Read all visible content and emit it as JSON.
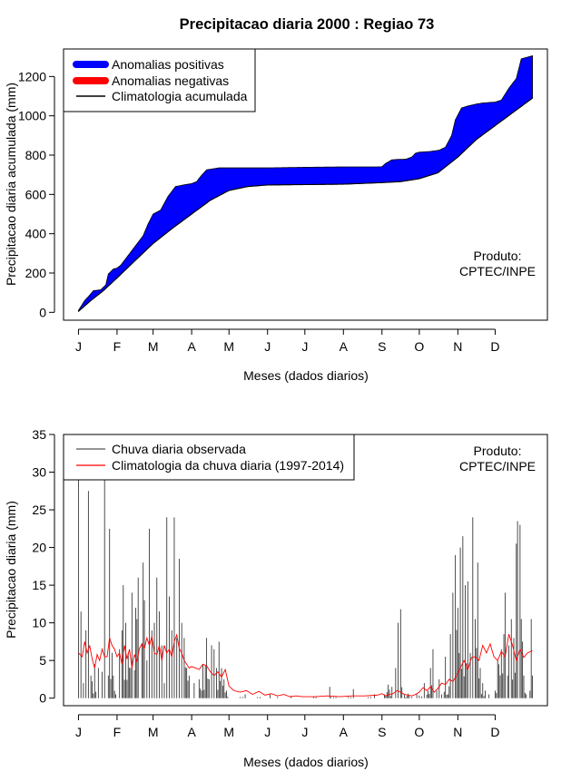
{
  "title": "Precipitacao diaria 2000 : Regiao 73",
  "chart_data": [
    {
      "type": "area",
      "ylabel": "Precipitacao diaria acumulada (mm)",
      "xlabel": "Meses (dados diarios)",
      "ylim": [
        -40,
        1340
      ],
      "xlim": [
        -12,
        377
      ],
      "y_ticks": [
        0,
        200,
        400,
        600,
        800,
        1000,
        1200
      ],
      "month_labels": [
        "J",
        "F",
        "M",
        "A",
        "M",
        "J",
        "J",
        "A",
        "S",
        "O",
        "N",
        "D"
      ],
      "month_days": [
        0,
        31,
        60,
        91,
        121,
        152,
        182,
        213,
        244,
        274,
        305,
        335
      ],
      "legend": {
        "position": "top-left",
        "entries": [
          "Anomalias positivas",
          "Anomalias negativas",
          "Climatologia acumulada"
        ],
        "colors": [
          "#0000ff",
          "#ff0000",
          "#000000"
        ]
      },
      "annotation": [
        "Produto:",
        "CPTEC/INPE"
      ],
      "colors": {
        "positive": "#0000ff",
        "negative": "#ff0000",
        "climatology": "#000000"
      },
      "climatology": {
        "x": [
          0,
          10,
          20,
          31,
          45,
          60,
          75,
          91,
          106,
          121,
          136,
          152,
          182,
          213,
          244,
          259,
          274,
          289,
          305,
          320,
          335,
          350,
          365
        ],
        "y": [
          5,
          60,
          110,
          175,
          260,
          350,
          425,
          500,
          570,
          620,
          640,
          648,
          650,
          652,
          660,
          665,
          680,
          710,
          790,
          880,
          950,
          1020,
          1090
        ]
      },
      "observed": {
        "x": [
          0,
          5,
          8,
          12,
          18,
          22,
          24,
          28,
          31,
          34,
          40,
          46,
          52,
          56,
          60,
          66,
          72,
          78,
          82,
          86,
          91,
          95,
          98,
          103,
          108,
          113,
          116,
          121,
          152,
          182,
          213,
          240,
          244,
          247,
          252,
          256,
          263,
          268,
          271,
          274,
          282,
          290,
          295,
          300,
          303,
          308,
          313,
          320,
          325,
          335,
          340,
          346,
          352,
          356,
          365
        ],
        "y": [
          10,
          60,
          80,
          110,
          115,
          140,
          195,
          220,
          225,
          240,
          290,
          340,
          390,
          450,
          500,
          520,
          590,
          640,
          645,
          650,
          655,
          665,
          690,
          725,
          730,
          735,
          735,
          735,
          735,
          738,
          740,
          740,
          741,
          758,
          776,
          778,
          779,
          790,
          810,
          815,
          818,
          825,
          840,
          900,
          980,
          1040,
          1050,
          1060,
          1065,
          1070,
          1080,
          1140,
          1190,
          1290,
          1305
        ]
      }
    },
    {
      "type": "bar",
      "ylabel": "Precipitacao diaria (mm)",
      "xlabel": "Meses (dados diarios)",
      "ylim": [
        -1,
        35
      ],
      "xlim": [
        -12,
        377
      ],
      "y_ticks": [
        0,
        5,
        10,
        15,
        20,
        25,
        30,
        35
      ],
      "month_labels": [
        "J",
        "F",
        "M",
        "A",
        "M",
        "J",
        "J",
        "A",
        "S",
        "O",
        "N",
        "D"
      ],
      "month_days": [
        0,
        31,
        60,
        91,
        121,
        152,
        182,
        213,
        244,
        274,
        305,
        335
      ],
      "legend": {
        "position": "top-left",
        "entries": [
          "Chuva diaria observada",
          "Climatologia da chuva diaria (1997-2014)"
        ],
        "colors": [
          "#666666",
          "#ff0000"
        ]
      },
      "annotation": [
        "Produto:",
        "CPTEC/INPE"
      ],
      "observed_peaks": [
        [
          0,
          29.8
        ],
        [
          2,
          11.5
        ],
        [
          4,
          2.0
        ],
        [
          6,
          9.0
        ],
        [
          8,
          27.5
        ],
        [
          10,
          3.0
        ],
        [
          13,
          4.5
        ],
        [
          16,
          4.0
        ],
        [
          19,
          3.5
        ],
        [
          21,
          29.0
        ],
        [
          24,
          3.0
        ],
        [
          25,
          22.5
        ],
        [
          28,
          3.0
        ],
        [
          30,
          0.5
        ],
        [
          33,
          6.5
        ],
        [
          35,
          9.0
        ],
        [
          36,
          15.0
        ],
        [
          38,
          10.0
        ],
        [
          40,
          6.0
        ],
        [
          43,
          14.0
        ],
        [
          46,
          12.0
        ],
        [
          47,
          10.5
        ],
        [
          48,
          16.0
        ],
        [
          52,
          18.0
        ],
        [
          53,
          13.0
        ],
        [
          55,
          5.0
        ],
        [
          57,
          22.5
        ],
        [
          59,
          9.0
        ],
        [
          61,
          10.0
        ],
        [
          63,
          16.0
        ],
        [
          65,
          11.5
        ],
        [
          67,
          7.0
        ],
        [
          69,
          2.0
        ],
        [
          71,
          24.0
        ],
        [
          73,
          13.5
        ],
        [
          75,
          9.0
        ],
        [
          77,
          24.0
        ],
        [
          79,
          8.0
        ],
        [
          81,
          18.5
        ],
        [
          83,
          10.0
        ],
        [
          85,
          8.0
        ],
        [
          87,
          4.0
        ],
        [
          89,
          3.0
        ],
        [
          93,
          2.0
        ],
        [
          97,
          2.5
        ],
        [
          100,
          4.5
        ],
        [
          103,
          8.0
        ],
        [
          105,
          2.5
        ],
        [
          107,
          7.0
        ],
        [
          109,
          6.5
        ],
        [
          111,
          4.0
        ],
        [
          113,
          7.5
        ],
        [
          115,
          4.0
        ],
        [
          117,
          2.5
        ],
        [
          119,
          1.0
        ],
        [
          134,
          0.5
        ],
        [
          154,
          0.5
        ],
        [
          171,
          0.3
        ],
        [
          202,
          1.5
        ],
        [
          221,
          1.2
        ],
        [
          238,
          0.5
        ],
        [
          246,
          0.5
        ],
        [
          249,
          1.8
        ],
        [
          252,
          1.5
        ],
        [
          255,
          4.0
        ],
        [
          257,
          10.0
        ],
        [
          259,
          11.8
        ],
        [
          262,
          0.5
        ],
        [
          265,
          0.6
        ],
        [
          272,
          0.5
        ],
        [
          278,
          2.0
        ],
        [
          281,
          1.0
        ],
        [
          283,
          4.0
        ],
        [
          285,
          6.5
        ],
        [
          288,
          1.0
        ],
        [
          290,
          2.5
        ],
        [
          292,
          0.5
        ],
        [
          295,
          5.5
        ],
        [
          297,
          0.5
        ],
        [
          299,
          8.5
        ],
        [
          301,
          14.0
        ],
        [
          303,
          19.0
        ],
        [
          305,
          12.0
        ],
        [
          307,
          20.0
        ],
        [
          309,
          21.5
        ],
        [
          311,
          15.0
        ],
        [
          313,
          15.5
        ],
        [
          315,
          6.0
        ],
        [
          317,
          24.0
        ],
        [
          319,
          10.5
        ],
        [
          321,
          18.0
        ],
        [
          323,
          4.0
        ],
        [
          325,
          2.0
        ],
        [
          327,
          1.0
        ],
        [
          330,
          0.5
        ],
        [
          335,
          1.0
        ],
        [
          337,
          5.0
        ],
        [
          338,
          4.5
        ],
        [
          340,
          6.5
        ],
        [
          342,
          8.5
        ],
        [
          343,
          14.0
        ],
        [
          345,
          3.0
        ],
        [
          346,
          7.0
        ],
        [
          348,
          10.5
        ],
        [
          350,
          8.0
        ],
        [
          352,
          20.5
        ],
        [
          353,
          23.5
        ],
        [
          355,
          23.0
        ],
        [
          356,
          10.5
        ],
        [
          357,
          7.5
        ],
        [
          358,
          3.0
        ],
        [
          360,
          0.5
        ],
        [
          363,
          1.0
        ],
        [
          364,
          10.5
        ],
        [
          365,
          3.0
        ]
      ],
      "climatology": {
        "x": [
          0,
          3,
          5,
          7,
          9,
          11,
          13,
          15,
          17,
          19,
          21,
          23,
          25,
          27,
          29,
          31,
          33,
          35,
          37,
          39,
          41,
          43,
          45,
          47,
          49,
          51,
          53,
          55,
          57,
          59,
          61,
          63,
          65,
          67,
          69,
          71,
          73,
          75,
          77,
          79,
          81,
          83,
          85,
          87,
          89,
          91,
          94,
          97,
          100,
          103,
          106,
          109,
          112,
          115,
          118,
          121,
          125,
          130,
          135,
          140,
          145,
          150,
          155,
          160,
          165,
          170,
          175,
          180,
          190,
          200,
          210,
          220,
          230,
          240,
          244,
          247,
          250,
          253,
          256,
          259,
          262,
          265,
          268,
          271,
          274,
          277,
          280,
          283,
          286,
          289,
          292,
          295,
          298,
          301,
          304,
          307,
          310,
          313,
          316,
          319,
          322,
          325,
          328,
          331,
          334,
          337,
          340,
          343,
          346,
          349,
          352,
          355,
          358,
          361,
          365
        ],
        "y": [
          6.0,
          5.5,
          7.5,
          6.0,
          7.0,
          5.2,
          4.0,
          5.8,
          5.0,
          6.5,
          5.5,
          5.5,
          8.0,
          7.0,
          6.5,
          5.5,
          6.0,
          4.5,
          7.0,
          5.2,
          6.5,
          4.0,
          5.8,
          4.8,
          6.6,
          7.2,
          6.6,
          8.0,
          7.0,
          8.2,
          6.0,
          5.8,
          7.0,
          5.0,
          7.0,
          6.0,
          6.5,
          5.5,
          7.5,
          8.4,
          6.6,
          6.0,
          5.0,
          4.5,
          4.0,
          4.2,
          4.0,
          3.8,
          4.5,
          4.3,
          3.5,
          3.0,
          3.5,
          2.8,
          3.8,
          1.6,
          1.0,
          0.8,
          1.0,
          0.5,
          0.9,
          0.4,
          0.6,
          0.3,
          0.5,
          0.2,
          0.3,
          0.2,
          0.2,
          0.3,
          0.2,
          0.3,
          0.3,
          0.4,
          0.6,
          0.3,
          0.5,
          0.6,
          1.0,
          0.8,
          0.5,
          0.4,
          0.3,
          0.5,
          0.8,
          1.4,
          1.0,
          1.5,
          0.8,
          1.3,
          2.0,
          1.8,
          2.5,
          2.2,
          3.0,
          4.0,
          5.0,
          3.8,
          5.4,
          5.5,
          5.0,
          7.0,
          6.0,
          7.2,
          5.5,
          5.0,
          6.2,
          5.5,
          8.5,
          7.0,
          5.0,
          6.5,
          5.4,
          6.0,
          6.3
        ]
      }
    }
  ]
}
